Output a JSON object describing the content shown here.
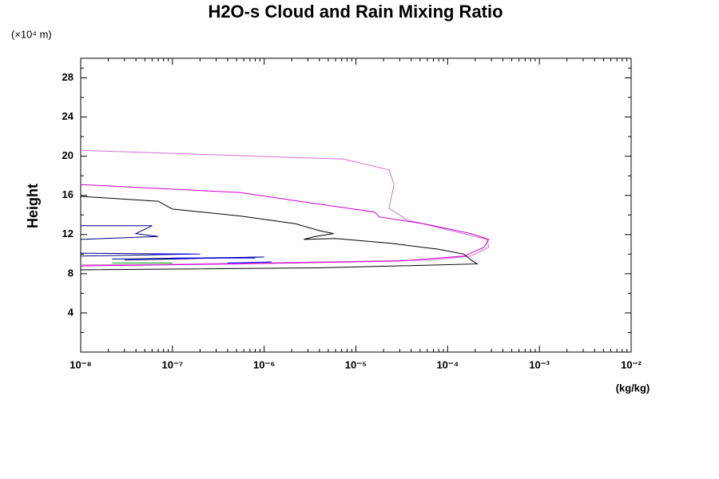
{
  "chart_data": {
    "type": "line",
    "title": "H2O-s Cloud and Rain Mixing Ratio",
    "y_unit": "(×10⁴ m)",
    "ylabel": "Height",
    "x_unit": "(kg/kg)",
    "xscale": "log",
    "xlim": [
      1e-08,
      0.01
    ],
    "ylim": [
      0,
      30
    ],
    "xticks": [
      {
        "value": 1e-08,
        "label": "10⁻⁸"
      },
      {
        "value": 1e-07,
        "label": "10⁻⁷"
      },
      {
        "value": 1e-06,
        "label": "10⁻⁶"
      },
      {
        "value": 1e-05,
        "label": "10⁻⁵"
      },
      {
        "value": 0.0001,
        "label": "10⁻⁴"
      },
      {
        "value": 0.001,
        "label": "10⁻³"
      },
      {
        "value": 0.01,
        "label": "10⁻²"
      }
    ],
    "yticks": [
      4,
      8,
      12,
      16,
      20,
      24,
      28
    ],
    "series": [
      {
        "color": "#d070d0",
        "x": [
          1e-08,
          7.3e-06,
          2.3e-05,
          2.6e-05,
          2.3e-05,
          3.6e-05,
          0.00012,
          0.00027,
          0.00028,
          0.00018,
          6.6e-05,
          4e-06,
          7e-08,
          1e-08
        ],
        "values": [
          20.6,
          19.7,
          18.6,
          17.1,
          14.7,
          13.5,
          12.3,
          11.5,
          10.7,
          9.8,
          9.4,
          9.2,
          8.95,
          8.9
        ]
      },
      {
        "color": "#cc00cc",
        "x": [
          1e-08,
          5.4e-07,
          4e-06,
          1.6e-05,
          1.8e-05,
          5.5e-05,
          0.00018,
          0.00028,
          0.00025,
          0.00015,
          3e-05,
          5.4e-07,
          1e-08
        ],
        "values": [
          17.1,
          16.3,
          15.1,
          14.3,
          13.8,
          13.1,
          12.1,
          11.5,
          10.7,
          9.8,
          9.3,
          9.0,
          8.8
        ]
      },
      {
        "color": "#000000",
        "x": [
          1e-08,
          7e-08,
          1e-07,
          5.4e-07,
          2.2e-06,
          4e-06,
          5.7e-06,
          3.6e-06,
          2.7e-06,
          6e-06,
          2.4e-05,
          8e-05,
          0.00015,
          0.00018,
          0.00021,
          4e-06,
          1e-08
        ],
        "values": [
          15.9,
          15.4,
          14.6,
          13.9,
          13.1,
          12.4,
          12.1,
          11.8,
          11.5,
          11.6,
          11.1,
          10.5,
          10.0,
          9.4,
          9.0,
          8.6,
          8.4
        ]
      },
      {
        "color": "#000080",
        "x": [
          1e-08,
          6e-08,
          4e-08,
          7e-08,
          1e-08,
          null,
          1e-08,
          1.6e-07,
          1e-08,
          null,
          2.2e-08,
          1e-06,
          3e-08
        ],
        "values": [
          12.9,
          12.9,
          12.1,
          11.8,
          11.5,
          null,
          10.1,
          10.0,
          9.8,
          null,
          9.5,
          9.7,
          9.4
        ]
      },
      {
        "color": "#0000ff",
        "x": [
          6e-08,
          2e-07,
          null,
          1e-07,
          8e-07,
          null,
          4e-07,
          1.2e-06
        ],
        "values": [
          10.0,
          10.0,
          null,
          9.6,
          9.6,
          null,
          9.1,
          9.2
        ]
      },
      {
        "color": "#00a000",
        "x": [
          2.2e-08,
          1e-07
        ],
        "values": [
          9.1,
          9.1
        ]
      }
    ]
  }
}
